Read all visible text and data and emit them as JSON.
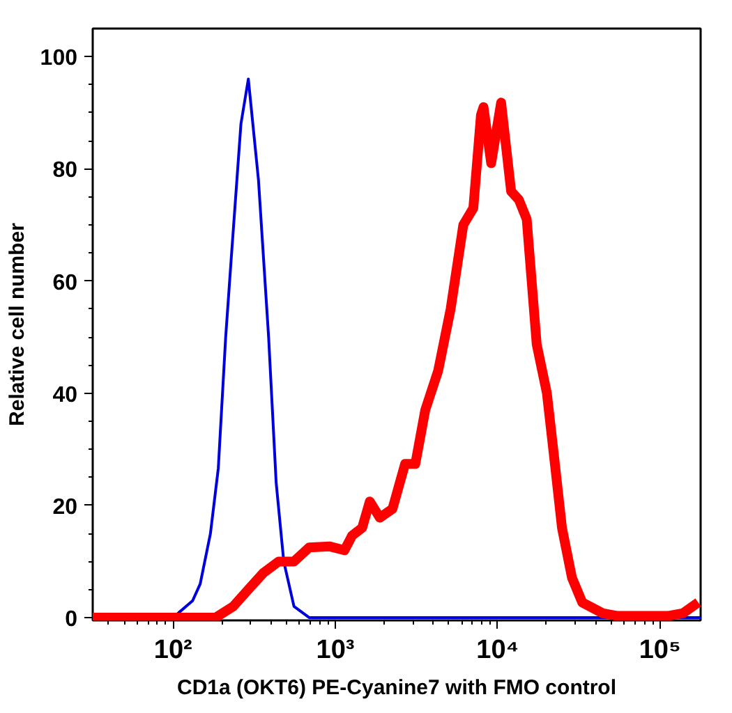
{
  "chart_data": {
    "type": "line",
    "xlabel": "CD1a (OKT6) PE-Cyanine7 with FMO control",
    "ylabel": "Relative cell number",
    "log": "x",
    "xlim": [
      32,
      178000
    ],
    "ylim": [
      -0.5,
      105
    ],
    "xticks": [
      {
        "value": 100,
        "label": "10²"
      },
      {
        "value": 1000,
        "label": "10³"
      },
      {
        "value": 10000,
        "label": "10⁴"
      },
      {
        "value": 100000,
        "label": "10⁵"
      }
    ],
    "yticks": [
      0,
      20,
      40,
      60,
      80,
      100
    ],
    "grid": false,
    "marker": "none",
    "line_style": "solid",
    "series": [
      {
        "color": "#0000dd",
        "x": [
          32,
          100,
          132,
          147,
          170,
          190,
          211,
          227,
          262,
          291,
          336,
          388,
          432,
          481,
          556,
          689,
          178000
        ],
        "values": [
          0,
          0,
          3,
          6,
          15,
          26.6,
          50,
          63,
          88,
          96,
          78,
          50,
          24,
          10,
          2,
          0,
          0
        ]
      },
      {
        "color": "#ff0000",
        "x": [
          32,
          183,
          235,
          291,
          361,
          448,
          556,
          689,
          918,
          1138,
          1268,
          1463,
          1630,
          1880,
          2250,
          2690,
          3110,
          3580,
          4300,
          5130,
          6140,
          7080,
          7890,
          8180,
          9120,
          10500,
          12100,
          13500,
          15100,
          17400,
          20100,
          22300,
          24900,
          28700,
          33200,
          44200,
          54700,
          112000,
          139000,
          172000
        ],
        "values": [
          0,
          0,
          2,
          5,
          8,
          10,
          10,
          12.5,
          12.7,
          12,
          14.6,
          16,
          20.7,
          17.8,
          19.4,
          27.4,
          27.4,
          37,
          44,
          55,
          70,
          73,
          89.6,
          91,
          81,
          91.8,
          76,
          74.5,
          71,
          48.7,
          40,
          28.5,
          16,
          7.1,
          2.7,
          0.8,
          0.3,
          0.3,
          0.8,
          2.7
        ]
      }
    ]
  }
}
